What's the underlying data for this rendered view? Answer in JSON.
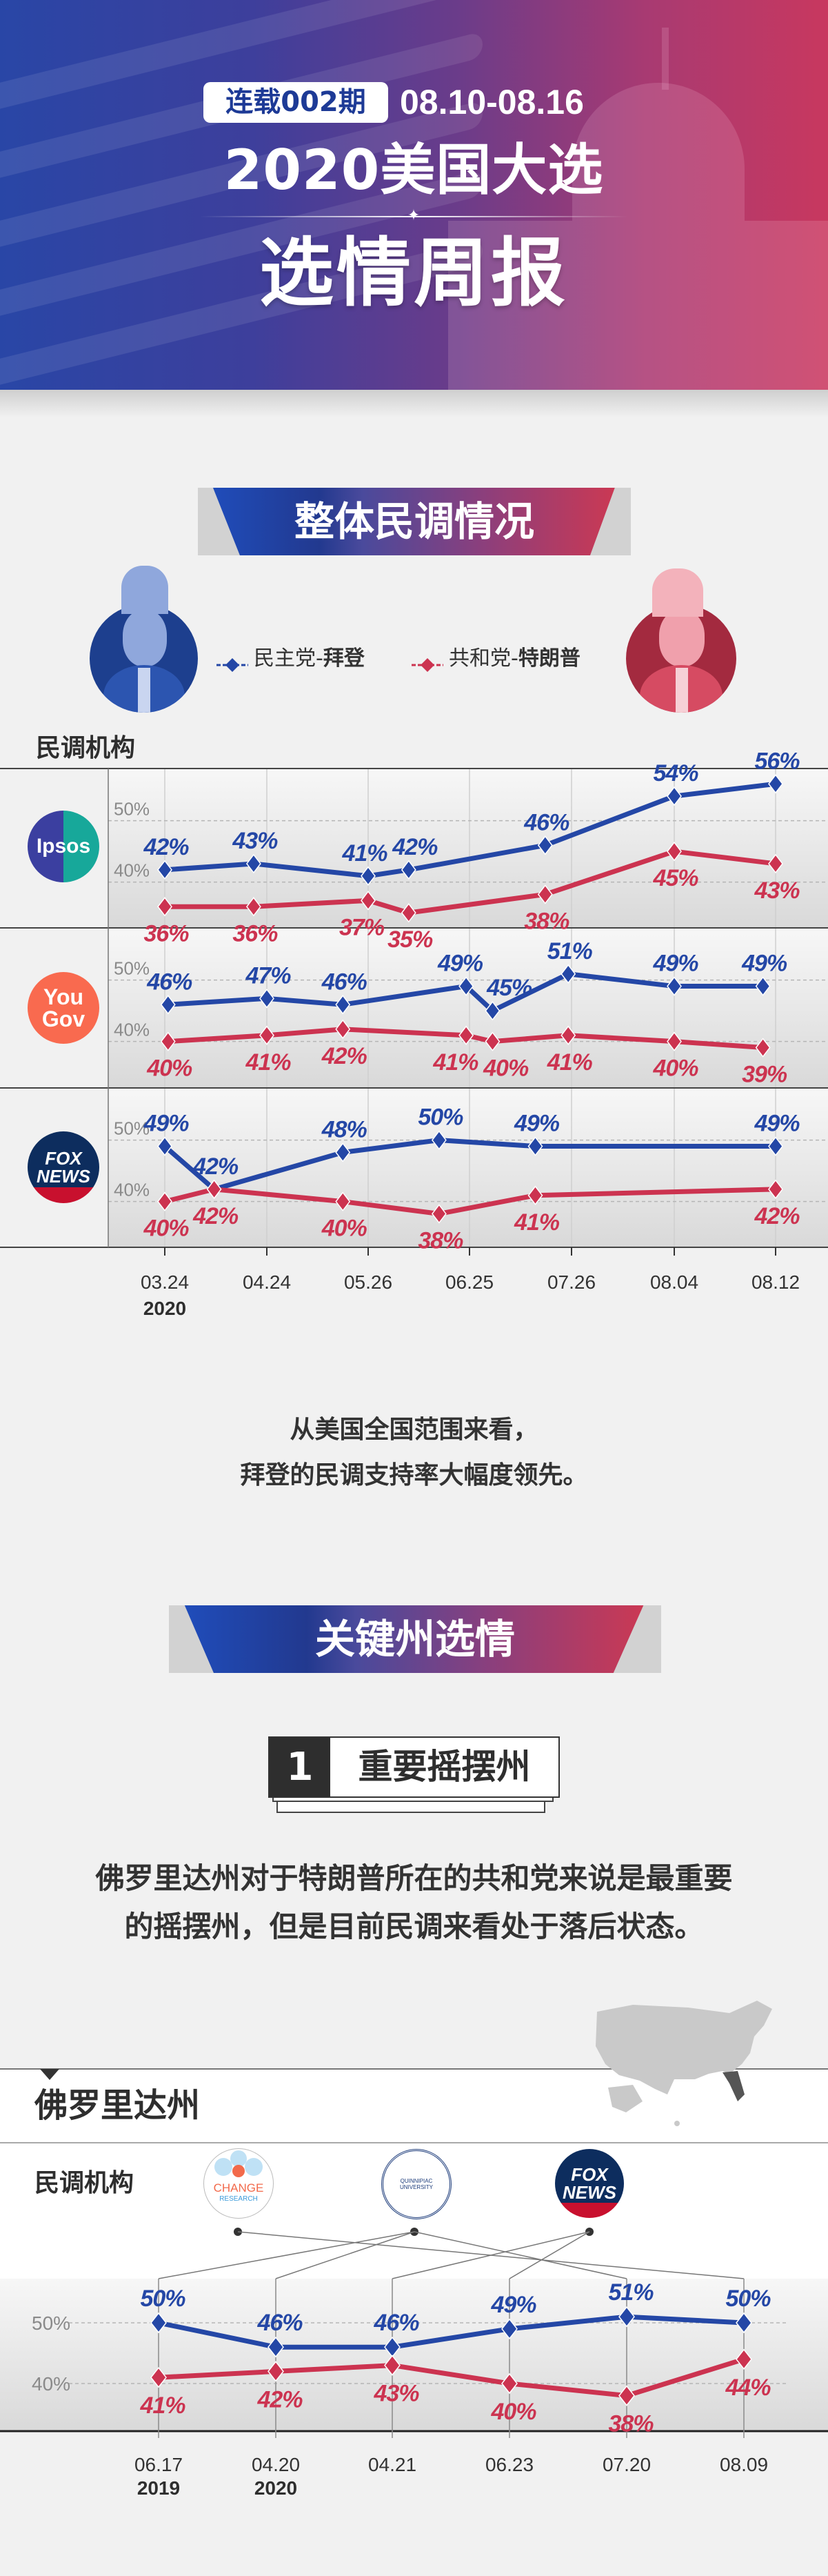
{
  "header": {
    "issue_badge": "连载002期",
    "date_range": "08.10-08.16",
    "title_line1": "2020美国大选",
    "title_line2": "选情周报"
  },
  "colors": {
    "democrat": "#2447a6",
    "republican": "#cc3350",
    "header_left": "#2946a6",
    "header_right": "#c8385f",
    "yougov": "#f96a4f",
    "ipsos_blue": "#3b3fa0",
    "ipsos_teal": "#17a89a",
    "fox_navy": "#0d2d5e",
    "fox_red": "#c8102e"
  },
  "section1": {
    "title": "整体民调情况",
    "legend": [
      {
        "prefix": "民主党-",
        "name": "拜登",
        "color": "#2447a6",
        "icon": "diamond-line-icon"
      },
      {
        "prefix": "共和党-",
        "name": "特朗普",
        "color": "#cc3350",
        "icon": "diamond-line-icon"
      }
    ],
    "pollster_label": "民调机构",
    "logos": {
      "ipsos": "Ipsos",
      "yougov_1": "You",
      "yougov_2": "Gov",
      "fox_1": "FOX",
      "fox_2": "NEWS"
    },
    "summary": [
      "从美国全国范围来看，",
      "拜登的民调支持率大幅度领先。"
    ]
  },
  "section2": {
    "title": "关键州选情",
    "subsection_number": "1",
    "subsection_title": "重要摇摆州",
    "paragraph": [
      "佛罗里达州对于特朗普所在的共和党来说是最重要",
      "的摇摆州，但是目前民调来看处于落后状态。"
    ],
    "state_name": "佛罗里达州",
    "pollster_label": "民调机构",
    "pollster_logos": {
      "change_1": "CHANGE",
      "change_2": "RESEARCH",
      "quinnipiac": "QUINNIPIAC UNIVERSITY",
      "fox_1": "FOX",
      "fox_2": "NEWS"
    }
  },
  "chart_data": [
    {
      "type": "line",
      "pollster": "Ipsos",
      "x_ticks": [
        "03.24",
        "04.24",
        "05.26",
        "06.25",
        "07.26",
        "08.04",
        "08.12"
      ],
      "x_year": "2020",
      "ylim": [
        32.5,
        58.5
      ],
      "y_ticks": [
        40,
        50
      ],
      "y_tick_labels": [
        "40%",
        "50%"
      ],
      "grid": true,
      "series": [
        {
          "name": "民主党-拜登",
          "color": "#2447a6",
          "x": [
            "03.24",
            "04.20",
            "05.26",
            "06.07",
            "07.18",
            "08.04",
            "08.12"
          ],
          "values": [
            42,
            43,
            41,
            42,
            46,
            54,
            56
          ]
        },
        {
          "name": "共和党-特朗普",
          "color": "#cc3350",
          "x": [
            "03.24",
            "04.20",
            "05.26",
            "06.07",
            "07.18",
            "08.04",
            "08.12"
          ],
          "values": [
            36,
            36,
            37,
            35,
            38,
            45,
            43
          ]
        }
      ]
    },
    {
      "type": "line",
      "pollster": "YouGov",
      "x_ticks": [
        "03.24",
        "04.24",
        "05.26",
        "06.25",
        "07.26",
        "08.04",
        "08.12"
      ],
      "x_year": "2020",
      "ylim": [
        32.5,
        58.5
      ],
      "y_ticks": [
        40,
        50
      ],
      "y_tick_labels": [
        "40%",
        "50%"
      ],
      "grid": true,
      "series": [
        {
          "name": "民主党-拜登",
          "color": "#2447a6",
          "x": [
            "03.25",
            "04.24",
            "05.18",
            "06.24",
            "07.02",
            "07.25",
            "08.04",
            "08.11"
          ],
          "values": [
            46,
            47,
            46,
            49,
            45,
            51,
            49,
            49
          ]
        },
        {
          "name": "共和党-特朗普",
          "color": "#cc3350",
          "x": [
            "03.25",
            "04.24",
            "05.18",
            "06.24",
            "07.02",
            "07.25",
            "08.04",
            "08.11"
          ],
          "values": [
            40,
            41,
            42,
            41,
            40,
            41,
            40,
            39
          ]
        }
      ]
    },
    {
      "type": "line",
      "pollster": "Fox News",
      "x_ticks": [
        "03.24",
        "04.24",
        "05.26",
        "06.25",
        "07.26",
        "08.04",
        "08.12"
      ],
      "x_year": "2020",
      "ylim": [
        32.5,
        58.5
      ],
      "y_ticks": [
        40,
        50
      ],
      "y_tick_labels": [
        "40%",
        "50%"
      ],
      "grid": true,
      "series": [
        {
          "name": "民主党-拜登",
          "color": "#2447a6",
          "x": [
            "03.24",
            "04.08",
            "05.18",
            "06.16",
            "07.15",
            "08.12"
          ],
          "values": [
            49,
            42,
            48,
            50,
            49,
            49
          ]
        },
        {
          "name": "共和党-特朗普",
          "color": "#cc3350",
          "x": [
            "03.24",
            "04.08",
            "05.18",
            "06.16",
            "07.15",
            "08.12"
          ],
          "values": [
            40,
            42,
            40,
            38,
            41,
            42
          ]
        }
      ]
    },
    {
      "type": "line",
      "title": "佛罗里达州",
      "categories": [
        "06.17",
        "04.20",
        "04.21",
        "06.23",
        "07.20",
        "08.09"
      ],
      "category_years": [
        "2019",
        "2020",
        "",
        "",
        "",
        ""
      ],
      "pollsters": [
        "Quinnipiac",
        "Quinnipiac",
        "Fox News",
        "Fox News",
        "Quinnipiac",
        "Change Research"
      ],
      "ylim": [
        34,
        57
      ],
      "y_ticks": [
        40,
        50
      ],
      "y_tick_labels": [
        "40%",
        "50%"
      ],
      "grid": true,
      "series": [
        {
          "name": "民主党-拜登",
          "color": "#2447a6",
          "values": [
            50,
            46,
            46,
            49,
            51,
            50
          ]
        },
        {
          "name": "共和党-特朗普",
          "color": "#cc3350",
          "values": [
            41,
            42,
            43,
            40,
            38,
            44
          ]
        }
      ]
    }
  ]
}
